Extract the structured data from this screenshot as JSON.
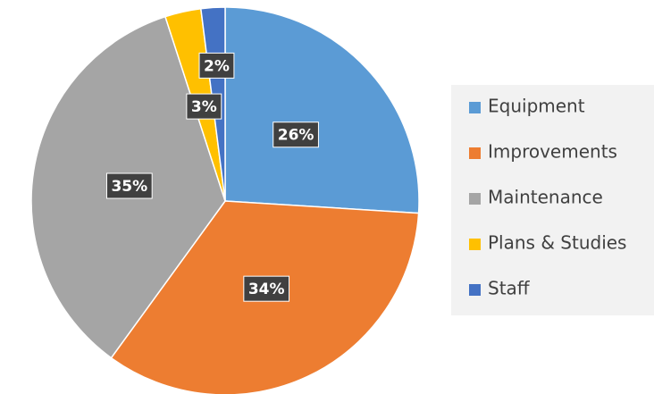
{
  "chart_data": {
    "type": "pie",
    "categories": [
      "Equipment",
      "Improvements",
      "Maintenance",
      "Plans & Studies",
      "Staff"
    ],
    "values": [
      26,
      34,
      35,
      3,
      2
    ],
    "value_labels": [
      "26%",
      "34%",
      "35%",
      "3%",
      "2%"
    ],
    "colors": [
      "#5b9bd5",
      "#ed7d31",
      "#a5a5a5",
      "#ffc000",
      "#4472c4"
    ],
    "legend": "right"
  }
}
